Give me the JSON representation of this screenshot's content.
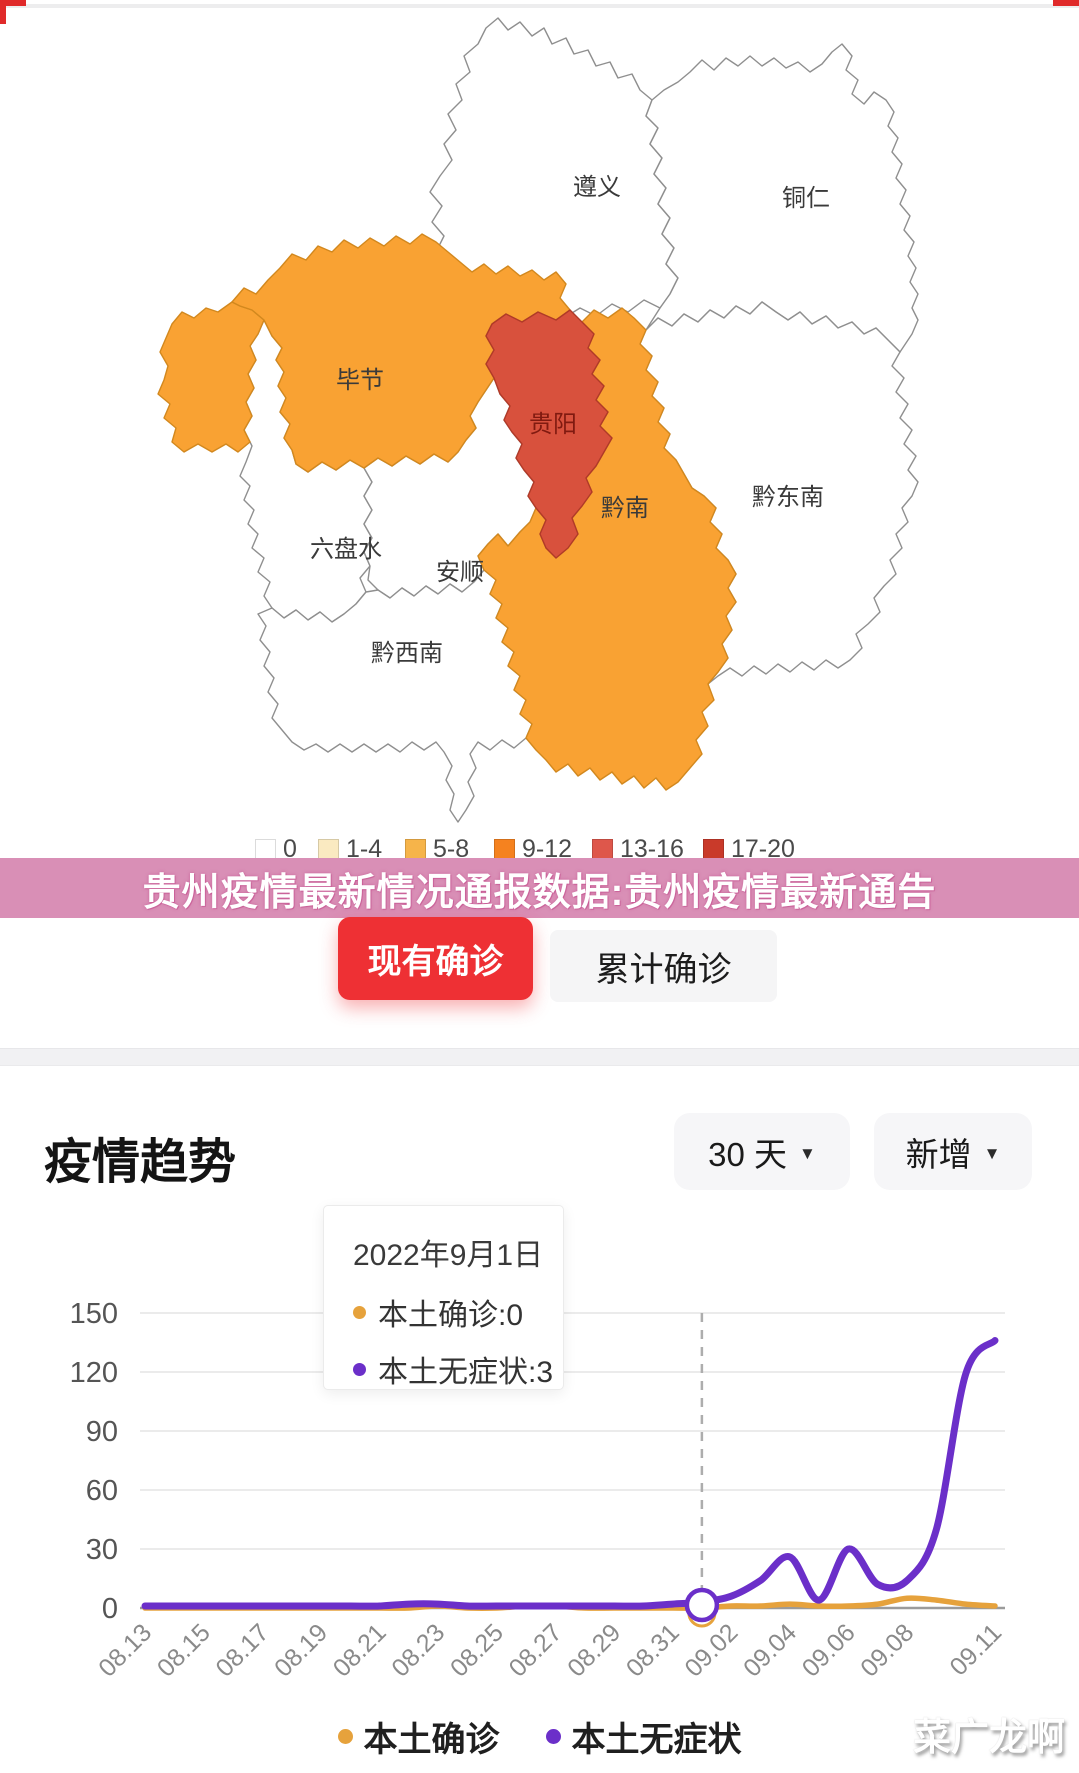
{
  "banner": {
    "text": "贵州疫情最新情况通报数据:贵州疫情最新通告",
    "bg": "#d98fb6"
  },
  "toggle": {
    "active_label": "现有确诊",
    "inactive_label": "累计确诊",
    "active_bg": "#ee3034"
  },
  "map": {
    "regions": [
      {
        "id": "zunyi",
        "label": "遵义",
        "fill": "#ffffff",
        "label_color": "#3a3a3a"
      },
      {
        "id": "tongren",
        "label": "铜仁",
        "fill": "#ffffff",
        "label_color": "#3a3a3a"
      },
      {
        "id": "qiandongnan",
        "label": "黔东南",
        "fill": "#ffffff",
        "label_color": "#3a3a3a"
      },
      {
        "id": "liupanshui",
        "label": "六盘水",
        "fill": "#ffffff",
        "label_color": "#3a3a3a"
      },
      {
        "id": "anshun",
        "label": "安顺",
        "fill": "#ffffff",
        "label_color": "#3a3a3a"
      },
      {
        "id": "qianxinan",
        "label": "黔西南",
        "fill": "#ffffff",
        "label_color": "#3a3a3a"
      },
      {
        "id": "bijie-west",
        "label": "",
        "fill": "#f9a233",
        "label_color": "#3a3a3a"
      },
      {
        "id": "bijie",
        "label": "毕节",
        "fill": "#f9a233",
        "label_color": "#3a3a3a"
      },
      {
        "id": "qiannan",
        "label": "黔南",
        "fill": "#f9a233",
        "label_color": "#3a3a3a"
      },
      {
        "id": "guiyang",
        "label": "贵阳",
        "fill": "#d8513d",
        "label_color": "#801a10"
      }
    ],
    "legend": [
      {
        "label": "0",
        "color": "#ffffff"
      },
      {
        "label": "1-4",
        "color": "#faeac1"
      },
      {
        "label": "5-8",
        "color": "#f6b44a"
      },
      {
        "label": "9-12",
        "color": "#f5821f"
      },
      {
        "label": "13-16",
        "color": "#de574b"
      },
      {
        "label": "17-20",
        "color": "#c93a2a"
      }
    ]
  },
  "trend": {
    "title": "疫情趋势",
    "range_dropdown": "30 天",
    "mode_dropdown": "新增",
    "tooltip": {
      "date": "2022年9月1日",
      "rows": [
        {
          "text": "本土确诊:0",
          "color": "#e6a23c"
        },
        {
          "text": "本土无症状:3",
          "color": "#6b2fc9"
        }
      ]
    }
  },
  "chart_data": {
    "type": "line",
    "title": "疫情趋势 (新增, 30天)",
    "categories": [
      "08.13",
      "08.14",
      "08.15",
      "08.16",
      "08.17",
      "08.18",
      "08.19",
      "08.20",
      "08.21",
      "08.22",
      "08.23",
      "08.24",
      "08.25",
      "08.26",
      "08.27",
      "08.28",
      "08.29",
      "08.30",
      "08.31",
      "09.01",
      "09.02",
      "09.03",
      "09.04",
      "09.05",
      "09.06",
      "09.07",
      "09.08",
      "09.09",
      "09.10",
      "09.11"
    ],
    "x_tick_indices": [
      0,
      2,
      4,
      6,
      8,
      10,
      12,
      14,
      16,
      18,
      20,
      22,
      24,
      26,
      29
    ],
    "series": [
      {
        "name": "本土确诊",
        "color": "#e6a23c",
        "values": [
          0,
          0,
          0,
          0,
          0,
          0,
          0,
          0,
          0,
          0,
          1,
          0,
          0,
          1,
          1,
          0,
          0,
          0,
          0,
          0,
          1,
          1,
          2,
          1,
          1,
          2,
          5,
          4,
          2,
          1
        ]
      },
      {
        "name": "本土无症状",
        "color": "#6b2fc9",
        "values": [
          1,
          1,
          1,
          1,
          1,
          1,
          1,
          1,
          1,
          2,
          2,
          1,
          1,
          1,
          1,
          1,
          1,
          1,
          2,
          3,
          6,
          14,
          26,
          4,
          30,
          12,
          14,
          40,
          119,
          136
        ]
      }
    ],
    "ylim": [
      0,
      150
    ],
    "yticks": [
      0,
      30,
      60,
      90,
      120,
      150
    ],
    "highlight_index": 19,
    "grid": true,
    "legend_position": "bottom"
  },
  "legend_bottom": [
    {
      "label": "本土确诊",
      "color": "#e6a23c"
    },
    {
      "label": "本土无症状",
      "color": "#6b2fc9"
    }
  ],
  "watermark": "菜广龙啊"
}
